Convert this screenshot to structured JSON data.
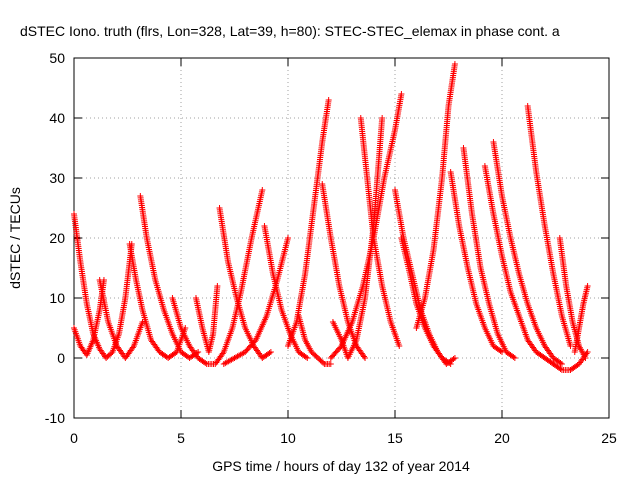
{
  "chart_data": {
    "type": "scatter",
    "title": "dSTEC Iono. truth (flrs, Lon=328, Lat=39, h=80): STEC-STEC_elemax in phase cont. a",
    "xlabel": "GPS time / hours of day 132 of year 2014",
    "ylabel": "dSTEC  / TECUs",
    "xlim": [
      0,
      25
    ],
    "ylim": [
      -10,
      50
    ],
    "xticks": [
      0,
      5,
      10,
      15,
      20,
      25
    ],
    "yticks": [
      -10,
      0,
      10,
      20,
      30,
      40,
      50
    ],
    "grid": true,
    "marker": "+",
    "series_color": "#ff0000",
    "series": [
      {
        "x": [
          0.0,
          0.3,
          0.6,
          0.9,
          1.2,
          1.5,
          1.8,
          2.1,
          2.4,
          2.7
        ],
        "y": [
          24,
          16,
          9,
          4,
          1.5,
          0,
          1,
          4,
          10,
          19
        ]
      },
      {
        "x": [
          0.0,
          0.3,
          0.6,
          0.9,
          1.2,
          1.4
        ],
        "y": [
          5,
          2,
          0.5,
          3,
          8,
          13
        ]
      },
      {
        "x": [
          1.2,
          1.6,
          2.0,
          2.4,
          2.8,
          3.2
        ],
        "y": [
          13,
          6,
          2,
          0,
          2,
          6
        ]
      },
      {
        "x": [
          2.6,
          2.9,
          3.2,
          3.6,
          4.0,
          4.4,
          4.8,
          5.2
        ],
        "y": [
          19,
          13,
          8,
          3,
          1,
          0,
          1,
          5
        ]
      },
      {
        "x": [
          3.1,
          3.4,
          3.8,
          4.2,
          4.6,
          5.0,
          5.4,
          5.8
        ],
        "y": [
          27,
          20,
          13,
          8,
          4,
          1,
          0,
          1
        ]
      },
      {
        "x": [
          4.6,
          5.0,
          5.4,
          5.8,
          6.2,
          6.6,
          7.0,
          7.4,
          7.8,
          8.3,
          8.8
        ],
        "y": [
          10,
          5,
          2,
          0,
          -1,
          -1,
          1,
          5,
          11,
          20,
          28
        ]
      },
      {
        "x": [
          5.7,
          6.0,
          6.3,
          6.5,
          6.7
        ],
        "y": [
          10,
          5,
          1,
          4,
          12
        ]
      },
      {
        "x": [
          6.8,
          7.2,
          7.6,
          8.0,
          8.4,
          8.8,
          9.2
        ],
        "y": [
          25,
          16,
          10,
          5,
          2,
          0,
          1
        ]
      },
      {
        "x": [
          7.0,
          7.5,
          8.0,
          8.5,
          9.0,
          9.5,
          10.0
        ],
        "y": [
          -1,
          0,
          1,
          3,
          7,
          13,
          20
        ]
      },
      {
        "x": [
          8.9,
          9.3,
          9.7,
          10.1,
          10.5,
          10.9
        ],
        "y": [
          22,
          14,
          8,
          4,
          1,
          0
        ]
      },
      {
        "x": [
          10.5,
          10.8,
          11.1,
          11.4,
          11.7,
          12.0
        ],
        "y": [
          7,
          3,
          1,
          0,
          -1,
          -1
        ]
      },
      {
        "x": [
          10.0,
          10.4,
          10.8,
          11.2,
          11.6,
          11.9
        ],
        "y": [
          2,
          6,
          14,
          25,
          36,
          43
        ]
      },
      {
        "x": [
          11.6,
          12.0,
          12.4,
          12.8,
          13.2,
          13.6
        ],
        "y": [
          29,
          20,
          12,
          6,
          2,
          0
        ]
      },
      {
        "x": [
          12.0,
          12.5,
          13.0,
          13.5,
          14.0,
          14.5,
          15.0,
          15.3
        ],
        "y": [
          0,
          2,
          6,
          12,
          20,
          30,
          38,
          44
        ]
      },
      {
        "x": [
          13.4,
          13.7,
          14.0,
          14.4,
          14.8,
          15.2
        ],
        "y": [
          40,
          30,
          20,
          12,
          6,
          2
        ]
      },
      {
        "x": [
          12.1,
          12.5,
          12.8,
          13.2,
          13.6,
          14.0,
          14.4
        ],
        "y": [
          6,
          3,
          0,
          3,
          10,
          22,
          40
        ]
      },
      {
        "x": [
          15.0,
          15.4,
          15.8,
          16.2,
          16.6,
          17.0,
          17.4,
          17.8
        ],
        "y": [
          28,
          20,
          14,
          8,
          4,
          1,
          -1,
          0
        ]
      },
      {
        "x": [
          15.3,
          15.7,
          16.0,
          16.4,
          16.8,
          17.2,
          17.6
        ],
        "y": [
          20,
          14,
          9,
          5,
          2,
          0,
          -1
        ]
      },
      {
        "x": [
          16.0,
          16.4,
          16.8,
          17.2,
          17.5,
          17.8
        ],
        "y": [
          5,
          10,
          18,
          30,
          42,
          49
        ]
      },
      {
        "x": [
          17.6,
          18.0,
          18.4,
          18.8,
          19.2,
          19.6,
          20.0
        ],
        "y": [
          31,
          22,
          15,
          9,
          5,
          2,
          1
        ]
      },
      {
        "x": [
          18.2,
          18.6,
          19.0,
          19.4,
          19.8,
          20.2,
          20.6
        ],
        "y": [
          35,
          24,
          15,
          9,
          4,
          1,
          0
        ]
      },
      {
        "x": [
          19.2,
          19.6,
          20.0,
          20.4,
          20.8,
          21.2,
          21.6,
          22.0,
          22.4
        ],
        "y": [
          32,
          24,
          17,
          11,
          7,
          3,
          1,
          0,
          -1
        ]
      },
      {
        "x": [
          19.6,
          20.0,
          20.4,
          20.8,
          21.2,
          21.6,
          22.0,
          22.4,
          22.8
        ],
        "y": [
          36,
          27,
          20,
          14,
          9,
          5,
          2,
          0,
          -1
        ]
      },
      {
        "x": [
          21.2,
          21.6,
          22.0,
          22.4,
          22.8,
          23.2
        ],
        "y": [
          42,
          31,
          22,
          14,
          7,
          2
        ]
      },
      {
        "x": [
          22.4,
          22.8,
          23.2,
          23.6,
          24.0
        ],
        "y": [
          -1,
          -2,
          -2,
          -1,
          1
        ]
      },
      {
        "x": [
          22.7,
          23.0,
          23.3,
          23.6,
          23.9
        ],
        "y": [
          20,
          12,
          6,
          2,
          0
        ]
      },
      {
        "x": [
          23.4,
          23.6,
          23.8,
          24.0
        ],
        "y": [
          1,
          5,
          9,
          12
        ]
      }
    ]
  }
}
